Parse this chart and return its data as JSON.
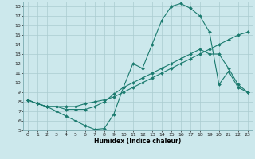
{
  "xlabel": "Humidex (Indice chaleur)",
  "background_color": "#cce8ec",
  "grid_color": "#aaccd0",
  "line_color": "#1a7a6e",
  "xlim": [
    -0.5,
    23.5
  ],
  "ylim": [
    5,
    18.5
  ],
  "xticks": [
    0,
    1,
    2,
    3,
    4,
    5,
    6,
    7,
    8,
    9,
    10,
    11,
    12,
    13,
    14,
    15,
    16,
    17,
    18,
    19,
    20,
    21,
    22,
    23
  ],
  "yticks": [
    5,
    6,
    7,
    8,
    9,
    10,
    11,
    12,
    13,
    14,
    15,
    16,
    17,
    18
  ],
  "line1_x": [
    0,
    1,
    2,
    3,
    4,
    5,
    6,
    7,
    8,
    9,
    10,
    11,
    12,
    13,
    14,
    15,
    16,
    17,
    18,
    19,
    20,
    21,
    22,
    23
  ],
  "line1_y": [
    8.2,
    7.8,
    7.5,
    7.0,
    6.5,
    6.0,
    5.5,
    5.1,
    5.2,
    6.7,
    9.5,
    12.0,
    11.5,
    14.0,
    16.5,
    18.0,
    18.3,
    17.8,
    17.0,
    15.3,
    9.8,
    11.2,
    9.5,
    9.0
  ],
  "line2_x": [
    0,
    1,
    2,
    3,
    4,
    5,
    6,
    7,
    8,
    9,
    10,
    11,
    12,
    13,
    14,
    15,
    16,
    17,
    18,
    19,
    20,
    21,
    22,
    23
  ],
  "line2_y": [
    8.2,
    7.8,
    7.5,
    7.5,
    7.2,
    7.2,
    7.2,
    7.5,
    8.0,
    8.8,
    9.5,
    10.0,
    10.5,
    11.0,
    11.5,
    12.0,
    12.5,
    13.0,
    13.5,
    13.0,
    13.0,
    11.5,
    9.8,
    9.0
  ],
  "line3_x": [
    0,
    1,
    2,
    3,
    4,
    5,
    6,
    7,
    8,
    9,
    10,
    11,
    12,
    13,
    14,
    15,
    16,
    17,
    18,
    19,
    20,
    21,
    22,
    23
  ],
  "line3_y": [
    8.2,
    7.8,
    7.5,
    7.5,
    7.5,
    7.5,
    7.8,
    8.0,
    8.2,
    8.5,
    9.0,
    9.5,
    10.0,
    10.5,
    11.0,
    11.5,
    12.0,
    12.5,
    13.0,
    13.5,
    14.0,
    14.5,
    15.0,
    15.3
  ]
}
